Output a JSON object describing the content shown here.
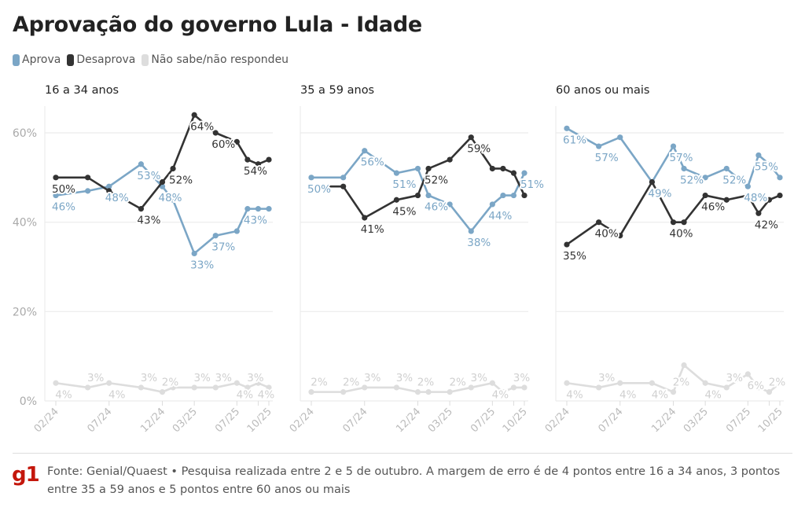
{
  "title": "Aprovação do governo Lula - Idade",
  "legend": [
    {
      "label": "Aprova",
      "color": "#7ba6c6"
    },
    {
      "label": "Desaprova",
      "color": "#333333"
    },
    {
      "label": "Não sabe/não respondeu",
      "color": "#dddddd"
    }
  ],
  "footer": {
    "logo": "g1",
    "source": "Fonte: Genial/Quaest • Pesquisa realizada entre 2 e 5 de outubro. A margem de erro é de 4 pontos entre 16 a 34 anos, 3 pontos entre 35 a 59 anos e 5 pontos entre 60 anos ou mais"
  },
  "chart_data": [
    {
      "type": "line",
      "title": "16 a 34 anos",
      "x": [
        "2024-02",
        "2024-05",
        "2024-07",
        "2024-10",
        "2024-12",
        "2025-01",
        "2025-03",
        "2025-05",
        "2025-07",
        "2025-08",
        "2025-09",
        "2025-10"
      ],
      "x_ticks": [
        "02/24",
        "07/24",
        "12/24",
        "03/25",
        "07/25",
        "10/25"
      ],
      "y_ticks": [
        "0%",
        "20%",
        "40%",
        "60%"
      ],
      "ylim": [
        0,
        60
      ],
      "grid": true,
      "series": [
        {
          "name": "Aprova",
          "color": "#7ba6c6",
          "values": [
            46,
            47,
            48,
            53,
            48,
            45,
            33,
            37,
            38,
            43,
            43,
            43
          ],
          "labeled": [
            0,
            2,
            3,
            4,
            6,
            7,
            9
          ]
        },
        {
          "name": "Desaprova",
          "color": "#333333",
          "values": [
            50,
            50,
            47,
            43,
            49,
            52,
            64,
            60,
            58,
            54,
            53,
            54
          ],
          "labeled": [
            0,
            3,
            5,
            6,
            7,
            9
          ]
        },
        {
          "name": "Não sabe/não respondeu",
          "color": "#dddddd",
          "values": [
            4,
            3,
            4,
            3,
            2,
            3,
            3,
            3,
            4,
            3,
            4,
            3
          ],
          "labeled": [
            0,
            1,
            2,
            3,
            4,
            6,
            7,
            8,
            9,
            10
          ]
        }
      ]
    },
    {
      "type": "line",
      "title": "35 a 59 anos",
      "x": [
        "2024-02",
        "2024-05",
        "2024-07",
        "2024-10",
        "2024-12",
        "2025-01",
        "2025-03",
        "2025-05",
        "2025-07",
        "2025-08",
        "2025-09",
        "2025-10"
      ],
      "x_ticks": [
        "02/24",
        "07/24",
        "12/24",
        "03/25",
        "07/25",
        "10/25"
      ],
      "ylim": [
        0,
        60
      ],
      "grid": true,
      "series": [
        {
          "name": "Aprova",
          "color": "#7ba6c6",
          "values": [
            50,
            50,
            56,
            51,
            52,
            46,
            44,
            38,
            44,
            46,
            46,
            51
          ],
          "labeled": [
            0,
            2,
            3,
            5,
            7,
            8,
            11
          ]
        },
        {
          "name": "Desaprova",
          "color": "#333333",
          "values": [
            48,
            48,
            41,
            45,
            46,
            52,
            54,
            59,
            52,
            52,
            51,
            46
          ],
          "labeled": [
            2,
            3,
            5,
            7
          ]
        },
        {
          "name": "Não sabe/não respondeu",
          "color": "#dddddd",
          "values": [
            2,
            2,
            3,
            3,
            2,
            2,
            2,
            3,
            4,
            2,
            3,
            3
          ],
          "labeled": [
            0,
            1,
            2,
            3,
            4,
            6,
            7,
            8,
            10
          ]
        }
      ]
    },
    {
      "type": "line",
      "title": "60 anos ou mais",
      "x": [
        "2024-02",
        "2024-05",
        "2024-07",
        "2024-10",
        "2024-12",
        "2025-01",
        "2025-03",
        "2025-05",
        "2025-07",
        "2025-08",
        "2025-09",
        "2025-10"
      ],
      "x_ticks": [
        "02/24",
        "07/24",
        "12/24",
        "03/25",
        "07/25",
        "10/25"
      ],
      "ylim": [
        0,
        60
      ],
      "grid": true,
      "series": [
        {
          "name": "Aprova",
          "color": "#7ba6c6",
          "values": [
            61,
            57,
            59,
            49,
            57,
            52,
            50,
            52,
            48,
            55,
            53,
            50
          ],
          "labeled": [
            0,
            1,
            3,
            4,
            5,
            7,
            8,
            9
          ]
        },
        {
          "name": "Desaprova",
          "color": "#333333",
          "values": [
            35,
            40,
            37,
            49,
            40,
            40,
            46,
            45,
            46,
            42,
            45,
            46
          ],
          "labeled": [
            0,
            1,
            4,
            6,
            9
          ]
        },
        {
          "name": "Não sabe/não respondeu",
          "color": "#dddddd",
          "values": [
            4,
            3,
            4,
            4,
            2,
            8,
            4,
            3,
            6,
            3,
            2,
            4
          ],
          "labeled": [
            0,
            1,
            2,
            3,
            4,
            6,
            7,
            8,
            10
          ]
        }
      ]
    }
  ]
}
